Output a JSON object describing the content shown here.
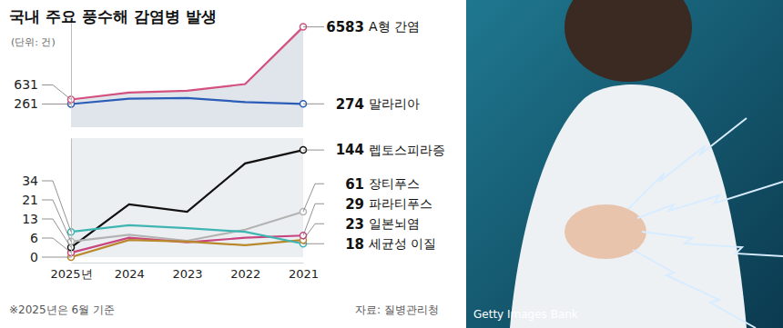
{
  "chart_data": [
    {
      "type": "line",
      "title": "국내 주요 풍수해 감염병 발생",
      "subtitle": "(단위: 건)",
      "categories": [
        "2025년",
        "2024",
        "2023",
        "2022",
        "2021"
      ],
      "ylim": [
        0,
        7000
      ],
      "yticks": [],
      "tick_labels": false,
      "series": [
        {
          "name": "A형 간염",
          "color": "#d4517f",
          "values": [
            631,
            1200,
            1350,
            1900,
            6583
          ],
          "value_labels": [
            "631",
            null,
            null,
            null,
            "6583"
          ]
        },
        {
          "name": "말라리아",
          "color": "#2b5cb8",
          "values": [
            261,
            700,
            747,
            420,
            274
          ],
          "value_labels": [
            "261",
            null,
            null,
            null,
            "274"
          ]
        }
      ]
    },
    {
      "type": "line",
      "categories": [
        "2025년",
        "2024",
        "2023",
        "2022",
        "2021"
      ],
      "ylim": [
        0,
        160
      ],
      "yticks": [],
      "tick_labels": "x",
      "series": [
        {
          "name": "렙토스피라증",
          "color": "#111111",
          "values": [
            13,
            71,
            61,
            126,
            144
          ],
          "value_labels": [
            "13",
            null,
            null,
            null,
            "144"
          ]
        },
        {
          "name": "장티푸스",
          "color": "#b3b3b3",
          "values": [
            21,
            30,
            22,
            37,
            61
          ],
          "value_labels": [
            "21",
            null,
            null,
            null,
            "61"
          ]
        },
        {
          "name": "파라티푸스",
          "color": "#c9457f",
          "values": [
            6,
            26,
            20,
            26,
            29
          ],
          "value_labels": [
            "6",
            null,
            null,
            null,
            "29"
          ]
        },
        {
          "name": "일본뇌염",
          "color": "#b8882a",
          "values": [
            0,
            23,
            21,
            16,
            23
          ],
          "value_labels": [
            "0",
            null,
            null,
            null,
            "23"
          ]
        },
        {
          "name": "세균성 이질",
          "color": "#3fb5b2",
          "values": [
            34,
            43,
            39,
            34,
            18
          ],
          "value_labels": [
            "34",
            null,
            null,
            null,
            "18"
          ]
        }
      ]
    }
  ],
  "footnote": "※2025년은 6월 기준",
  "source": "자료: 질병관리청",
  "photo_credit": "Getty Images Bank"
}
